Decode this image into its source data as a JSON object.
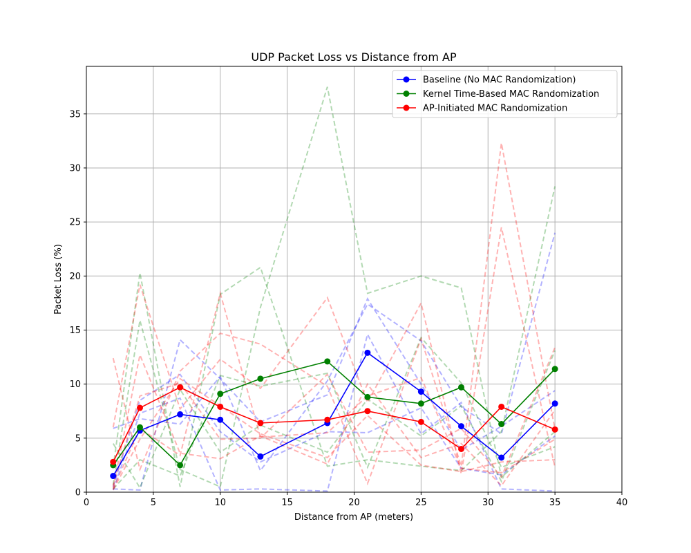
{
  "chart_data": {
    "type": "line",
    "title": "UDP Packet Loss vs Distance from AP",
    "xlabel": "Distance from AP (meters)",
    "ylabel": "Packet Loss (%)",
    "xlim": [
      0,
      40
    ],
    "ylim": [
      0,
      39.4
    ],
    "xticks": [
      0,
      5,
      10,
      15,
      20,
      25,
      30,
      35,
      40
    ],
    "yticks": [
      0,
      5,
      10,
      15,
      20,
      25,
      30,
      35
    ],
    "grid": true,
    "legend_position": "top-right",
    "x": [
      2,
      4,
      7,
      10,
      13,
      18,
      21,
      25,
      28,
      31,
      35
    ],
    "series": [
      {
        "name": "Baseline (No MAC Randomization)",
        "color": "#0000ff",
        "marker": "circle",
        "values": [
          1.5,
          5.7,
          7.2,
          6.7,
          3.3,
          6.4,
          12.9,
          9.3,
          6.1,
          3.2,
          8.2
        ]
      },
      {
        "name": "Kernel Time-Based MAC Randomization",
        "color": "#008000",
        "marker": "circle",
        "values": [
          2.5,
          6.0,
          2.5,
          9.1,
          10.5,
          12.1,
          8.8,
          8.2,
          9.7,
          6.3,
          11.4
        ]
      },
      {
        "name": "AP-Initiated MAC Randomization",
        "color": "#ff0000",
        "marker": "circle",
        "values": [
          2.8,
          7.8,
          9.7,
          7.9,
          6.4,
          6.7,
          7.5,
          6.5,
          4.0,
          7.9,
          5.8
        ]
      }
    ],
    "individual_runs": [
      {
        "color": "#0000ff",
        "values": [
          5.9,
          6.8,
          6.3,
          10.7,
          2.0,
          10.3,
          17.4,
          14.0,
          7.9,
          5.4,
          24.0
        ]
      },
      {
        "color": "#0000ff",
        "values": [
          0.3,
          0.2,
          14.1,
          10.5,
          6.5,
          9.0,
          17.9,
          10.0,
          3.9,
          6.1,
          9.4
        ]
      },
      {
        "color": "#0000ff",
        "values": [
          0.2,
          7.3,
          8.7,
          0.2,
          0.3,
          0.1,
          14.6,
          5.4,
          8.3,
          0.3,
          0.1
        ]
      },
      {
        "color": "#0000ff",
        "values": [
          0.5,
          8.5,
          10.9,
          5.6,
          2.8,
          5.6,
          5.5,
          7.8,
          2.2,
          1.6,
          5.2
        ]
      },
      {
        "color": "#008000",
        "values": [
          2.3,
          20.3,
          0.5,
          18.3,
          20.8,
          2.4,
          3.0,
          2.4,
          2.0,
          5.6,
          28.3
        ]
      },
      {
        "color": "#008000",
        "values": [
          0.7,
          15.9,
          2.1,
          0.5,
          17.1,
          37.5,
          18.4,
          20.0,
          18.9,
          1.4,
          5.6
        ]
      },
      {
        "color": "#008000",
        "values": [
          0.3,
          3.0,
          1.5,
          10.8,
          9.8,
          11.0,
          2.3,
          14.3,
          10.1,
          2.3,
          4.2
        ]
      },
      {
        "color": "#008000",
        "values": [
          4.5,
          0.4,
          9.5,
          3.7,
          6.2,
          3.7,
          8.6,
          5.2,
          8.0,
          1.0,
          13.1
        ]
      },
      {
        "color": "#ff0000",
        "values": [
          12.4,
          2.1,
          11.2,
          14.7,
          13.7,
          9.8,
          0.8,
          14.2,
          2.4,
          32.3,
          5.8
        ]
      },
      {
        "color": "#ff0000",
        "values": [
          6.0,
          19.2,
          7.7,
          12.3,
          9.6,
          18.0,
          8.3,
          17.5,
          1.7,
          24.5,
          2.3
        ]
      },
      {
        "color": "#ff0000",
        "values": [
          0.4,
          12.7,
          3.6,
          3.1,
          5.2,
          2.6,
          10.0,
          3.2,
          4.5,
          0.6,
          7.6
        ]
      },
      {
        "color": "#ff0000",
        "values": [
          0.2,
          4.9,
          10.5,
          8.0,
          5.4,
          3.2,
          7.1,
          2.5,
          1.9,
          2.8,
          3.0
        ]
      },
      {
        "color": "#ff0000",
        "values": [
          0.6,
          8.9,
          10.1,
          4.9,
          5.0,
          10.9,
          3.7,
          3.9,
          5.9,
          1.4,
          13.4
        ]
      },
      {
        "color": "#ff0000",
        "values": [
          0.3,
          5.9,
          3.4,
          18.4,
          5.1,
          5.5,
          8.9,
          10.6,
          2.2,
          1.8,
          4.9
        ]
      }
    ]
  }
}
